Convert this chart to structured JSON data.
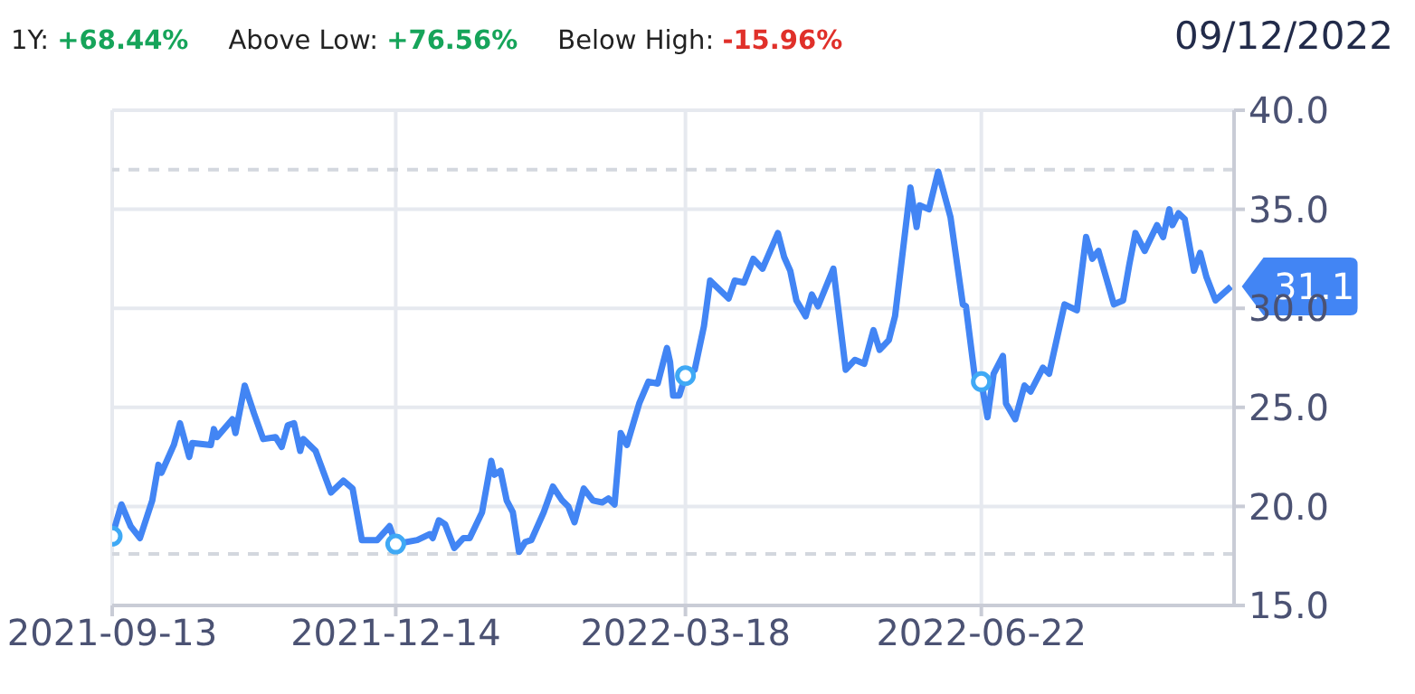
{
  "chart_data": {
    "type": "line",
    "annotations": [
      "1Y: +68.44%",
      "Above Low: +76.56%",
      "Below High: -15.96%",
      "09/12/2022",
      {
        "text": "31.1",
        "x": "2022-09-11",
        "y": 31.1
      }
    ],
    "xlim": [
      "2021-09-13",
      "2022-09-12"
    ],
    "xticks": [
      "2021-09-13",
      "2021-12-14",
      "2022-03-18",
      "2022-06-22"
    ],
    "ylim": [
      15,
      40
    ],
    "yticks": [
      {
        "value": 15,
        "label": "15.0"
      },
      {
        "value": 20,
        "label": "20.0"
      },
      {
        "value": 25,
        "label": "25.0"
      },
      {
        "value": 30,
        "label": "30.0"
      },
      {
        "value": 35,
        "label": "35.0"
      },
      {
        "value": 40,
        "label": "40.0"
      }
    ],
    "grid": true,
    "ref_lines": [
      {
        "axis": "y",
        "value": 17.6,
        "color": "#d3d7de",
        "line_style": "dashed"
      },
      {
        "axis": "y",
        "value": 37.0,
        "color": "#d3d7de",
        "line_style": "dashed"
      }
    ],
    "series": [
      {
        "color": "#4285f4",
        "marker": "none",
        "x": [
          "2021-09-13",
          "2021-09-16",
          "2021-09-19",
          "2021-09-22",
          "2021-09-26",
          "2021-09-28",
          "2021-09-29",
          "2021-10-03",
          "2021-10-05",
          "2021-10-08",
          "2021-10-09",
          "2021-10-15",
          "2021-10-16",
          "2021-10-17",
          "2021-10-22",
          "2021-10-23",
          "2021-10-26",
          "2021-10-29",
          "2021-11-01",
          "2021-11-05",
          "2021-11-07",
          "2021-11-09",
          "2021-11-11",
          "2021-11-13",
          "2021-11-14",
          "2021-11-18",
          "2021-11-23",
          "2021-11-27",
          "2021-11-30",
          "2021-12-03",
          "2021-12-05",
          "2021-12-08",
          "2021-12-12",
          "2021-12-14",
          "2021-12-21",
          "2021-12-25",
          "2021-12-26",
          "2021-12-28",
          "2021-12-30",
          "2022-01-02",
          "2022-01-05",
          "2022-01-07",
          "2022-01-11",
          "2022-01-14",
          "2022-01-15",
          "2022-01-17",
          "2022-01-19",
          "2022-01-21",
          "2022-01-23",
          "2022-01-25",
          "2022-01-27",
          "2022-01-31",
          "2022-02-03",
          "2022-02-06",
          "2022-02-08",
          "2022-02-10",
          "2022-02-13",
          "2022-02-16",
          "2022-02-19",
          "2022-02-21",
          "2022-02-23",
          "2022-02-25",
          "2022-02-27",
          "2022-03-03",
          "2022-03-06",
          "2022-03-09",
          "2022-03-12",
          "2022-03-13",
          "2022-03-14",
          "2022-03-16",
          "2022-03-18",
          "2022-03-21",
          "2022-03-24",
          "2022-03-26",
          "2022-04-01",
          "2022-04-03",
          "2022-04-06",
          "2022-04-09",
          "2022-04-12",
          "2022-04-17",
          "2022-04-19",
          "2022-04-21",
          "2022-04-23",
          "2022-04-26",
          "2022-04-28",
          "2022-04-30",
          "2022-05-05",
          "2022-05-09",
          "2022-05-12",
          "2022-05-15",
          "2022-05-18",
          "2022-05-20",
          "2022-05-23",
          "2022-05-25",
          "2022-05-30",
          "2022-06-01",
          "2022-06-02",
          "2022-06-05",
          "2022-06-08",
          "2022-06-12",
          "2022-06-16",
          "2022-06-17",
          "2022-06-20",
          "2022-06-22",
          "2022-06-24",
          "2022-06-26",
          "2022-06-29",
          "2022-06-30",
          "2022-07-03",
          "2022-07-06",
          "2022-07-08",
          "2022-07-12",
          "2022-07-14",
          "2022-07-19",
          "2022-07-23",
          "2022-07-26",
          "2022-07-28",
          "2022-07-30",
          "2022-08-04",
          "2022-08-07",
          "2022-08-09",
          "2022-08-11",
          "2022-08-14",
          "2022-08-18",
          "2022-08-20",
          "2022-08-22",
          "2022-08-23",
          "2022-08-25",
          "2022-08-27",
          "2022-08-30",
          "2022-09-01",
          "2022-09-03",
          "2022-09-06",
          "2022-09-11"
        ],
        "values": [
          18.5,
          20.1,
          19.0,
          18.4,
          20.3,
          22.1,
          21.7,
          23.1,
          24.2,
          22.5,
          23.2,
          23.1,
          23.9,
          23.5,
          24.4,
          23.7,
          26.1,
          24.7,
          23.4,
          23.5,
          23.0,
          24.1,
          24.2,
          22.8,
          23.4,
          22.8,
          20.7,
          21.3,
          20.9,
          18.3,
          18.3,
          18.3,
          19.0,
          18.1,
          18.3,
          18.6,
          18.4,
          19.3,
          19.1,
          17.9,
          18.4,
          18.4,
          19.7,
          22.3,
          21.6,
          21.8,
          20.3,
          19.7,
          17.7,
          18.2,
          18.3,
          19.7,
          21.0,
          20.3,
          20.0,
          19.2,
          20.9,
          20.3,
          20.2,
          20.4,
          20.1,
          23.7,
          23.1,
          25.2,
          26.3,
          26.2,
          28.0,
          27.3,
          25.6,
          25.6,
          26.6,
          26.9,
          29.1,
          31.4,
          30.5,
          31.4,
          31.3,
          32.5,
          32.0,
          33.8,
          32.6,
          31.9,
          30.4,
          29.6,
          30.7,
          30.1,
          32.0,
          26.9,
          27.4,
          27.2,
          28.9,
          27.9,
          28.4,
          29.6,
          36.1,
          34.1,
          35.2,
          35.0,
          36.9,
          34.6,
          30.2,
          30.1,
          26.4,
          26.3,
          24.5,
          26.7,
          27.6,
          25.2,
          24.4,
          26.1,
          25.8,
          27.0,
          26.7,
          30.2,
          29.9,
          33.6,
          32.5,
          32.9,
          30.2,
          30.4,
          32.2,
          33.8,
          32.9,
          34.2,
          33.6,
          35.0,
          34.2,
          34.8,
          34.5,
          31.9,
          32.8,
          31.6,
          30.4,
          31.1
        ]
      },
      {
        "type": "scatter",
        "color": "#3fa9f5",
        "marker": "circle",
        "x": [
          "2021-09-13",
          "2021-12-14",
          "2022-03-18",
          "2022-06-22"
        ],
        "values": [
          18.5,
          18.1,
          26.6,
          26.3
        ]
      }
    ]
  }
}
